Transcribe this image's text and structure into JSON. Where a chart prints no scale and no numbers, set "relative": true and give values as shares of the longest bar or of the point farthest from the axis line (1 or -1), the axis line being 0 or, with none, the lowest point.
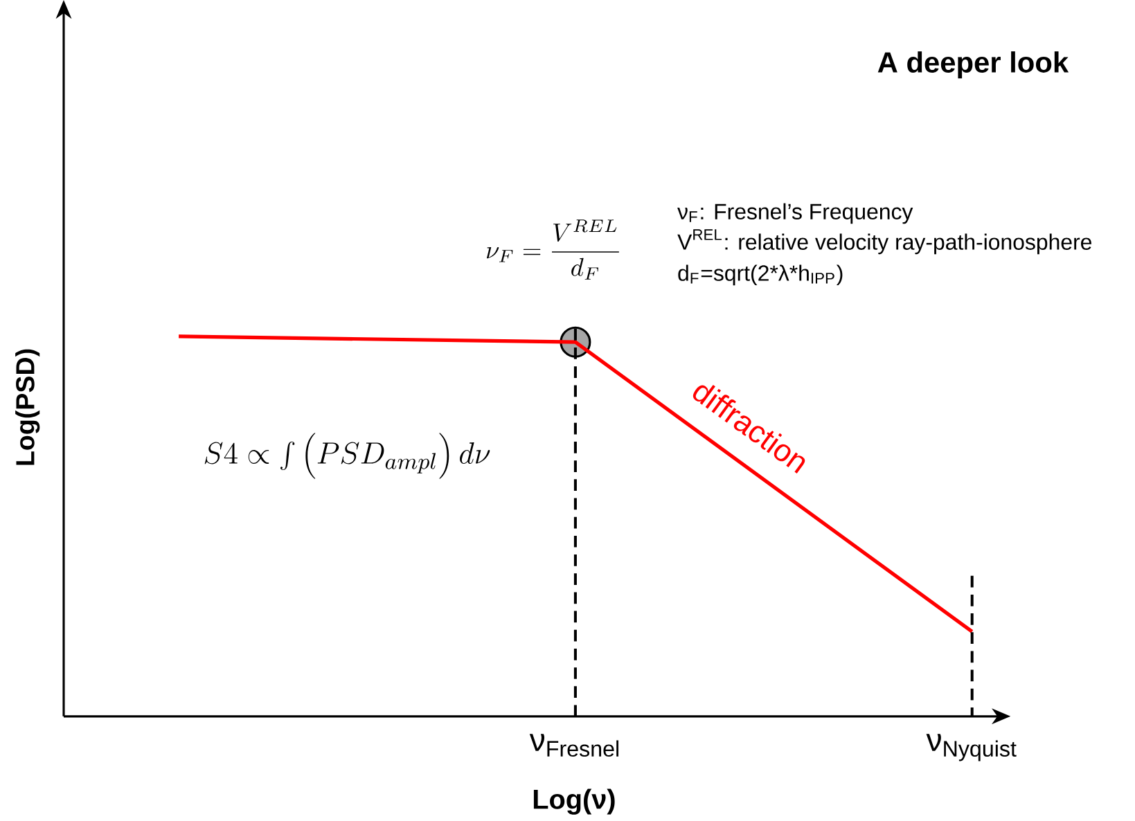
{
  "chart_data": {
    "type": "line",
    "title": "A deeper look",
    "xlabel": "Log(ν)",
    "ylabel": "Log(PSD)",
    "categories": [
      null,
      "ν$_{Fresnel}$",
      "ν$_{Nyquist}$"
    ],
    "relative": true,
    "tick_labels": "x",
    "series": [
      {
        "type": "scatter",
        "marker": "circle",
        "color": "#a6a6a6",
        "values": [
          null,
          0.985,
          null
        ]
      },
      {
        "color": "#ff0000",
        "values": [
          1,
          0.985,
          0.223
        ]
      }
    ],
    "ref_lines": [
      {
        "axis": "x",
        "value": "ν$_{Fresnel}$",
        "color": "#000000",
        "line_style": "dashed"
      },
      {
        "axis": "x",
        "value": "ν$_{Nyquist}$",
        "color": "#000000",
        "line_style": "dashed"
      }
    ],
    "annotations": [
      "\\nu_F = \\frac{V^{REL}}{d_F}",
      "ν$_{F}$: Fresnel’s Frequency",
      "V$^{REL}$: relative velocity ray-path-ionosphere",
      "d$_{F}$=sqrt(2*λ*h$_{IPP}$)",
      "S4 \\propto \\int\\left(PSD_{ampl}\\right)d\\nu",
      "diffraction"
    ]
  }
}
